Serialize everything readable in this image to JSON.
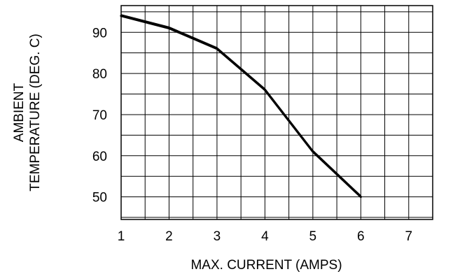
{
  "chart_data": {
    "type": "line",
    "xlabel": "MAX. CURRENT  (AMPS)",
    "ylabel_lines": [
      "AMBIENT",
      "TEMPERATURE (DEG. C)"
    ],
    "xlim": [
      1,
      7.5
    ],
    "ylim": [
      44.5,
      96.5
    ],
    "x_ticks": [
      1,
      2,
      3,
      4,
      5,
      6,
      7
    ],
    "y_ticks": [
      50,
      60,
      70,
      80,
      90
    ],
    "x_minor_step": 0.5,
    "y_minor_step": 5,
    "grid": true,
    "series": [
      {
        "x": [
          1.0,
          2.0,
          3.0,
          4.0,
          5.0,
          6.0
        ],
        "y": [
          94,
          91,
          86,
          76,
          61,
          50
        ]
      }
    ]
  }
}
